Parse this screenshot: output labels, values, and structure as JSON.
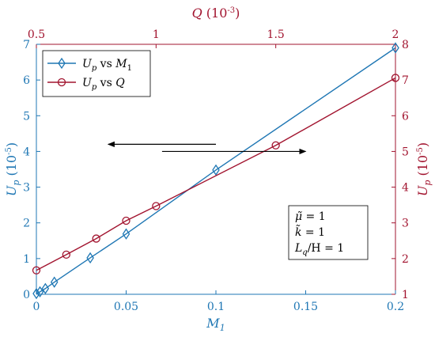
{
  "chart_data": {
    "type": "line",
    "colors": {
      "blue": "#1f77b4",
      "red": "#a2142f",
      "axis": "#262626"
    },
    "bottom_axis": {
      "label": "M_1",
      "range": [
        0,
        0.2
      ],
      "ticks": [
        0,
        0.05,
        0.1,
        0.15,
        0.2
      ],
      "tick_labels": [
        "0",
        "0.05",
        "0.1",
        "0.15",
        "0.2"
      ]
    },
    "top_axis": {
      "label": "Q (10^{-3})",
      "range": [
        0.5,
        2
      ],
      "ticks": [
        0.5,
        1,
        1.5,
        2
      ],
      "tick_labels": [
        "0.5",
        "1",
        "1.5",
        "2"
      ]
    },
    "left_axis": {
      "label": "U_p (10^{-5})",
      "range": [
        0,
        7
      ],
      "ticks": [
        0,
        1,
        2,
        3,
        4,
        5,
        6,
        7
      ],
      "tick_labels": [
        "0",
        "1",
        "2",
        "3",
        "4",
        "5",
        "6",
        "7"
      ]
    },
    "right_axis": {
      "label": "U_p (10^{-5})",
      "range": [
        1,
        8
      ],
      "ticks": [
        1,
        2,
        3,
        4,
        5,
        6,
        7,
        8
      ],
      "tick_labels": [
        "1",
        "2",
        "3",
        "4",
        "5",
        "6",
        "7",
        "8"
      ]
    },
    "series": [
      {
        "name": "U_p vs M_1",
        "color": "#1f77b4",
        "marker": "diamond",
        "axes": "bottom-left",
        "x": [
          0,
          0.002,
          0.005,
          0.01,
          0.03,
          0.05,
          0.1,
          0.2
        ],
        "y": [
          0.02,
          0.07,
          0.16,
          0.34,
          1.02,
          1.69,
          3.48,
          6.9
        ],
        "marked_x": [
          0,
          0.002,
          0.005,
          0.01,
          0.03,
          0.05,
          0.1,
          0.2
        ]
      },
      {
        "name": "U_p vs Q",
        "color": "#a2142f",
        "marker": "circle",
        "axes": "top-right",
        "x": [
          0.5,
          0.625,
          0.75,
          0.875,
          1.0,
          1.5,
          2.0
        ],
        "y": [
          1.67,
          2.11,
          2.56,
          3.06,
          3.47,
          5.17,
          7.06
        ]
      }
    ],
    "arrows": [
      {
        "direction": "left",
        "from_x": 0.1,
        "to_x": 0.04,
        "y": 4.2
      },
      {
        "direction": "right",
        "from_x": 0.07,
        "to_x": 0.15,
        "y": 4.0
      }
    ],
    "legend": {
      "location": "top-left"
    },
    "parameters": {
      "lines": [
        "μ̃ = 1",
        "k̃ = 1",
        "L_q/H = 1"
      ],
      "location": "lower-right"
    },
    "grid": false
  }
}
